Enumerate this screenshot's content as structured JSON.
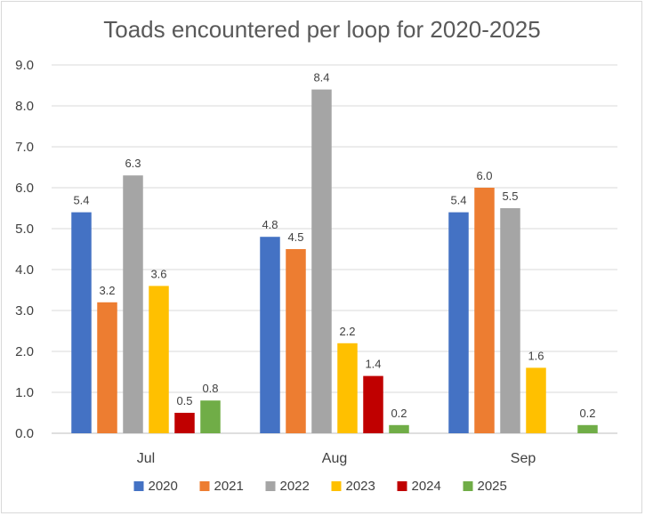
{
  "chart_data": {
    "type": "bar",
    "title": "Toads encountered per loop for 2020-2025",
    "xlabel": "",
    "ylabel": "",
    "ylim": [
      0,
      9
    ],
    "yticks": [
      0,
      1,
      2,
      3,
      4,
      5,
      6,
      7,
      8,
      9
    ],
    "ytick_labels": [
      "0.0",
      "1.0",
      "2.0",
      "3.0",
      "4.0",
      "5.0",
      "6.0",
      "7.0",
      "8.0",
      "9.0"
    ],
    "grid": true,
    "legend_position": "bottom",
    "categories": [
      "Jul",
      "Aug",
      "Sep"
    ],
    "series": [
      {
        "name": "2020",
        "color": "#4472c4",
        "values": [
          5.4,
          4.8,
          5.4
        ],
        "labels": [
          "5.4",
          "4.8",
          "5.4"
        ]
      },
      {
        "name": "2021",
        "color": "#ed7d31",
        "values": [
          3.2,
          4.5,
          6.0
        ],
        "labels": [
          "3.2",
          "4.5",
          "6.0"
        ]
      },
      {
        "name": "2022",
        "color": "#a5a5a5",
        "values": [
          6.3,
          8.4,
          5.5
        ],
        "labels": [
          "6.3",
          "8.4",
          "5.5"
        ]
      },
      {
        "name": "2023",
        "color": "#ffc000",
        "values": [
          3.6,
          2.2,
          1.6
        ],
        "labels": [
          "3.6",
          "2.2",
          "1.6"
        ]
      },
      {
        "name": "2024",
        "color": "#c00000",
        "values": [
          0.5,
          1.4,
          null
        ],
        "labels": [
          "0.5",
          "1.4",
          null
        ]
      },
      {
        "name": "2025",
        "color": "#70ad47",
        "values": [
          0.8,
          0.2,
          0.2
        ],
        "labels": [
          "0.8",
          "0.2",
          "0.2"
        ]
      }
    ]
  }
}
